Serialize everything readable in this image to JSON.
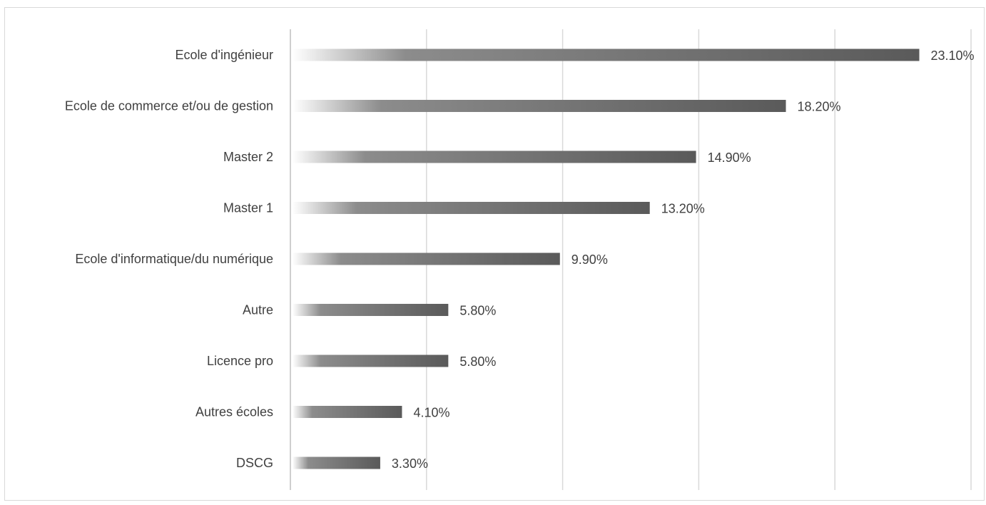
{
  "chart_data": {
    "type": "bar",
    "orientation": "horizontal",
    "title": "",
    "xlabel": "",
    "ylabel": "",
    "categories": [
      "Ecole d'ingénieur",
      "Ecole de commerce et/ou de gestion",
      "Master 2",
      "Master 1",
      "Ecole d'informatique/du numérique",
      "Autre",
      "Licence pro",
      "Autres écoles",
      "DSCG"
    ],
    "values": [
      23.1,
      18.2,
      14.9,
      13.2,
      9.9,
      5.8,
      5.8,
      4.1,
      3.3
    ],
    "data_labels": [
      "23.10%",
      "18.20%",
      "14.90%",
      "13.20%",
      "9.90%",
      "5.80%",
      "5.80%",
      "4.10%",
      "3.30%"
    ],
    "xlim": [
      0,
      25
    ],
    "major_unit": 5,
    "x_tick_labels_visible": false,
    "grid": "vertical",
    "legend": "none",
    "colors": {
      "bar_start": "#ffffff",
      "bar_mid": "#8c8c8c",
      "bar_end": "#5a5a5a",
      "gridline": "#d9d9d9",
      "axis_line": "#bfbfbf",
      "text": "#404040",
      "border": "#d9d9d9"
    }
  }
}
